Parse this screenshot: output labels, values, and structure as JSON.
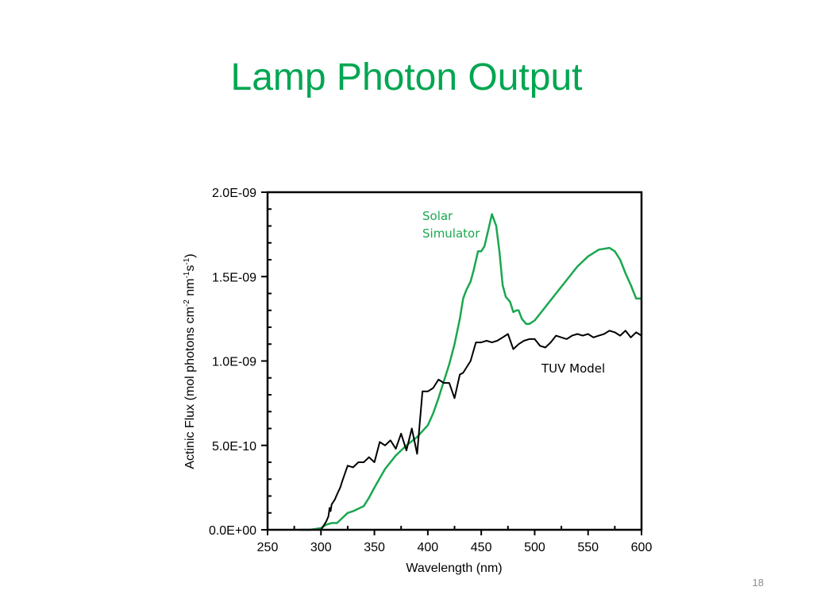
{
  "slide": {
    "title": "Lamp Photon Output",
    "number": "18",
    "title_color": "#00a651"
  },
  "chart_data": {
    "type": "line",
    "xlabel": "Wavelength (nm)",
    "ylabel": {
      "base": "Actinic Flux (mol photons cm",
      "sup1": "-2",
      "mid": " nm",
      "sup2": "-1",
      "mid2": "s",
      "sup3": "-1",
      "end": ")"
    },
    "xlim": [
      250,
      600
    ],
    "ylim": [
      0,
      2e-09
    ],
    "x_ticks": [
      250,
      300,
      350,
      400,
      450,
      500,
      550,
      600
    ],
    "x_tick_labels": [
      "250",
      "300",
      "350",
      "400",
      "450",
      "500",
      "550",
      "600"
    ],
    "y_ticks": [
      0,
      5e-10,
      1e-09,
      1.5e-09,
      2e-09
    ],
    "y_tick_labels": [
      "0.0E+00",
      "5.0E-10",
      "1.0E-09",
      "1.5E-09",
      "2.0E-09"
    ],
    "grid": false,
    "series": [
      {
        "name": "Solar Simulator",
        "color": "#1aa750",
        "label_lines": [
          "Solar",
          "Simulator"
        ],
        "x": [
          280,
          290,
          300,
          305,
          310,
          315,
          320,
          325,
          330,
          340,
          345,
          350,
          360,
          370,
          380,
          390,
          400,
          405,
          410,
          415,
          420,
          425,
          430,
          433,
          436,
          440,
          443,
          447,
          450,
          453,
          456,
          460,
          464,
          467,
          470,
          473,
          477,
          480,
          483,
          485,
          488,
          492,
          495,
          500,
          505,
          510,
          520,
          530,
          540,
          550,
          560,
          570,
          575,
          580,
          585,
          590,
          595,
          600
        ],
        "y": [
          0,
          0,
          1e-11,
          3e-11,
          4e-11,
          4e-11,
          7e-11,
          1e-10,
          1.1e-10,
          1.4e-10,
          1.9e-10,
          2.5e-10,
          3.6e-10,
          4.4e-10,
          5e-10,
          5.5e-10,
          6.2e-10,
          6.9e-10,
          7.8e-10,
          8.8e-10,
          9.8e-10,
          1.1e-09,
          1.25e-09,
          1.37e-09,
          1.42e-09,
          1.47e-09,
          1.54e-09,
          1.65e-09,
          1.65e-09,
          1.68e-09,
          1.76e-09,
          1.87e-09,
          1.8e-09,
          1.65e-09,
          1.45e-09,
          1.38e-09,
          1.35e-09,
          1.29e-09,
          1.3e-09,
          1.3e-09,
          1.25e-09,
          1.22e-09,
          1.22e-09,
          1.24e-09,
          1.28e-09,
          1.32e-09,
          1.4e-09,
          1.48e-09,
          1.56e-09,
          1.62e-09,
          1.66e-09,
          1.67e-09,
          1.65e-09,
          1.6e-09,
          1.52e-09,
          1.45e-09,
          1.37e-09,
          1.37e-09
        ]
      },
      {
        "name": "TUV Model",
        "color": "#000000",
        "label_lines": [
          "TUV Model"
        ],
        "x": [
          300,
          303,
          305,
          307,
          308,
          309,
          310,
          313,
          315,
          318,
          320,
          325,
          330,
          335,
          340,
          345,
          350,
          355,
          360,
          365,
          370,
          375,
          380,
          385,
          390,
          395,
          400,
          405,
          410,
          415,
          420,
          425,
          430,
          433,
          435,
          440,
          445,
          450,
          455,
          460,
          465,
          470,
          475,
          480,
          485,
          490,
          495,
          500,
          505,
          510,
          515,
          520,
          525,
          530,
          535,
          540,
          545,
          550,
          555,
          560,
          565,
          570,
          575,
          580,
          585,
          590,
          595,
          600
        ],
        "y": [
          0,
          3e-11,
          5e-11,
          8e-11,
          1.3e-10,
          1.1e-10,
          1.5e-10,
          1.8e-10,
          2.1e-10,
          2.5e-10,
          2.9e-10,
          3.8e-10,
          3.7e-10,
          4e-10,
          4e-10,
          4.3e-10,
          4e-10,
          5.2e-10,
          5e-10,
          5.3e-10,
          4.8e-10,
          5.7e-10,
          4.7e-10,
          6e-10,
          4.5e-10,
          8.2e-10,
          8.2e-10,
          8.4e-10,
          8.9e-10,
          8.7e-10,
          8.7e-10,
          7.8e-10,
          9.2e-10,
          9.3e-10,
          9.5e-10,
          1e-09,
          1.11e-09,
          1.11e-09,
          1.12e-09,
          1.11e-09,
          1.12e-09,
          1.14e-09,
          1.16e-09,
          1.07e-09,
          1.1e-09,
          1.12e-09,
          1.13e-09,
          1.13e-09,
          1.09e-09,
          1.08e-09,
          1.11e-09,
          1.15e-09,
          1.14e-09,
          1.13e-09,
          1.15e-09,
          1.16e-09,
          1.15e-09,
          1.16e-09,
          1.14e-09,
          1.15e-09,
          1.16e-09,
          1.18e-09,
          1.17e-09,
          1.15e-09,
          1.18e-09,
          1.14e-09,
          1.17e-09,
          1.15e-09
        ]
      }
    ]
  }
}
